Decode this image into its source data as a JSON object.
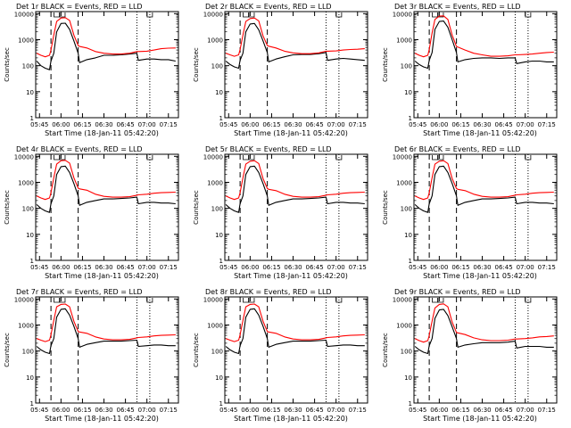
{
  "figure": {
    "ylabel": "Counts/sec",
    "xlabel": "Start Time (18-Jan-11 05:42:20)"
  },
  "axes": {
    "y_scale": "log",
    "ylim": [
      1,
      12000
    ],
    "y_tick_labels": [
      "1",
      "10",
      "100",
      "1000",
      "10000"
    ],
    "x_tick_labels": [
      "05:45",
      "06:00",
      "06:15",
      "06:30",
      "06:45",
      "07:00",
      "07:15"
    ],
    "xlim": [
      "05:42:20",
      "07:22:00"
    ]
  },
  "markers": {
    "dashed_lines": [
      "05:53",
      "06:12"
    ],
    "dotted_lines": [
      "06:53",
      "07:02"
    ],
    "top_glyphs": [
      "05:57",
      "06:01",
      "07:02"
    ]
  },
  "colors": {
    "events": "#000000",
    "lld": "#ff0000"
  },
  "chart_data": [
    {
      "type": "line",
      "title": "Det 1r BLACK = Events, RED = LLD",
      "xlabel": "Start Time (18-Jan-11 05:42:20)",
      "ylabel": "Counts/sec",
      "x": [
        "05:43",
        "05:46",
        "05:49",
        "05:52",
        "05:53",
        "05:55",
        "05:57",
        "06:00",
        "06:03",
        "06:06",
        "06:09",
        "06:12",
        "06:13",
        "06:18",
        "06:24",
        "06:30",
        "06:36",
        "06:42",
        "06:48",
        "06:53",
        "06:54",
        "07:00",
        "07:05",
        "07:10",
        "07:15",
        "07:20"
      ],
      "series": [
        {
          "name": "BLACK = Events",
          "values": [
            150,
            100,
            80,
            70,
            150,
            300,
            2000,
            4200,
            4300,
            2500,
            900,
            300,
            130,
            170,
            200,
            250,
            250,
            260,
            280,
            300,
            160,
            180,
            180,
            170,
            170,
            150
          ]
        },
        {
          "name": "RED = LLD",
          "values": [
            300,
            250,
            220,
            250,
            400,
            1500,
            5000,
            6800,
            7000,
            5500,
            1500,
            600,
            550,
            480,
            350,
            300,
            280,
            280,
            300,
            350,
            350,
            360,
            400,
            450,
            470,
            480
          ]
        }
      ]
    },
    {
      "type": "line",
      "title": "Det 2r BLACK = Events, RED = LLD",
      "xlabel": "Start Time (18-Jan-11 05:42:20)",
      "ylabel": "Counts/sec",
      "x": [
        "05:43",
        "05:46",
        "05:49",
        "05:52",
        "05:53",
        "05:55",
        "05:57",
        "06:00",
        "06:03",
        "06:06",
        "06:09",
        "06:12",
        "06:13",
        "06:18",
        "06:24",
        "06:30",
        "06:36",
        "06:42",
        "06:48",
        "06:53",
        "06:54",
        "07:00",
        "07:05",
        "07:10",
        "07:15",
        "07:20"
      ],
      "series": [
        {
          "name": "BLACK = Events",
          "values": [
            150,
            110,
            90,
            80,
            160,
            300,
            2000,
            4000,
            4200,
            2400,
            900,
            320,
            140,
            180,
            220,
            260,
            270,
            270,
            290,
            320,
            160,
            180,
            190,
            180,
            170,
            160
          ]
        },
        {
          "name": "RED = LLD",
          "values": [
            300,
            260,
            230,
            260,
            420,
            1500,
            5000,
            6500,
            6800,
            5300,
            1400,
            600,
            560,
            480,
            360,
            310,
            290,
            290,
            310,
            360,
            360,
            370,
            400,
            420,
            430,
            450
          ]
        }
      ]
    },
    {
      "type": "line",
      "title": "Det 3r BLACK = Events, RED = LLD",
      "xlabel": "Start Time (18-Jan-11 05:42:20)",
      "ylabel": "Counts/sec",
      "x": [
        "05:43",
        "05:46",
        "05:49",
        "05:52",
        "05:53",
        "05:55",
        "05:57",
        "06:00",
        "06:03",
        "06:06",
        "06:09",
        "06:12",
        "06:13",
        "06:18",
        "06:24",
        "06:30",
        "06:36",
        "06:42",
        "06:48",
        "06:53",
        "06:54",
        "07:00",
        "07:05",
        "07:10",
        "07:15",
        "07:20"
      ],
      "series": [
        {
          "name": "BLACK = Events",
          "values": [
            150,
            110,
            90,
            80,
            160,
            320,
            2500,
            5000,
            5200,
            3000,
            1000,
            320,
            140,
            170,
            190,
            200,
            200,
            190,
            200,
            200,
            120,
            140,
            150,
            150,
            140,
            140
          ]
        },
        {
          "name": "RED = LLD",
          "values": [
            300,
            250,
            220,
            250,
            420,
            1800,
            6000,
            8000,
            8200,
            6000,
            1500,
            550,
            520,
            400,
            300,
            260,
            230,
            230,
            240,
            260,
            260,
            270,
            280,
            300,
            320,
            330
          ]
        }
      ]
    },
    {
      "type": "line",
      "title": "Det 4r BLACK = Events, RED = LLD",
      "xlabel": "Start Time (18-Jan-11 05:42:20)",
      "ylabel": "Counts/sec",
      "x": [
        "05:43",
        "05:46",
        "05:49",
        "05:52",
        "05:53",
        "05:55",
        "05:57",
        "06:00",
        "06:03",
        "06:06",
        "06:09",
        "06:12",
        "06:13",
        "06:18",
        "06:24",
        "06:30",
        "06:36",
        "06:42",
        "06:48",
        "06:53",
        "06:54",
        "07:00",
        "07:05",
        "07:10",
        "07:15",
        "07:20"
      ],
      "series": [
        {
          "name": "BLACK = Events",
          "values": [
            140,
            100,
            80,
            70,
            150,
            300,
            2000,
            4000,
            4200,
            2400,
            900,
            300,
            130,
            170,
            200,
            230,
            230,
            240,
            250,
            270,
            150,
            170,
            170,
            160,
            160,
            150
          ]
        },
        {
          "name": "RED = LLD",
          "values": [
            300,
            250,
            220,
            250,
            400,
            1500,
            5000,
            6800,
            7000,
            5500,
            1500,
            600,
            560,
            500,
            350,
            290,
            270,
            270,
            280,
            320,
            330,
            350,
            380,
            400,
            410,
            420
          ]
        }
      ]
    },
    {
      "type": "line",
      "title": "Det 5r BLACK = Events, RED = LLD",
      "xlabel": "Start Time (18-Jan-11 05:42:20)",
      "ylabel": "Counts/sec",
      "x": [
        "05:43",
        "05:46",
        "05:49",
        "05:52",
        "05:53",
        "05:55",
        "05:57",
        "06:00",
        "06:03",
        "06:06",
        "06:09",
        "06:12",
        "06:13",
        "06:18",
        "06:24",
        "06:30",
        "06:36",
        "06:42",
        "06:48",
        "06:53",
        "06:54",
        "07:00",
        "07:05",
        "07:10",
        "07:15",
        "07:20"
      ],
      "series": [
        {
          "name": "BLACK = Events",
          "values": [
            140,
            100,
            80,
            70,
            150,
            300,
            2000,
            4000,
            4200,
            2400,
            900,
            300,
            130,
            170,
            200,
            230,
            230,
            240,
            250,
            270,
            150,
            170,
            170,
            160,
            160,
            150
          ]
        },
        {
          "name": "RED = LLD",
          "values": [
            300,
            250,
            220,
            250,
            400,
            1500,
            5000,
            6500,
            6800,
            5300,
            1400,
            580,
            540,
            480,
            350,
            290,
            270,
            270,
            280,
            320,
            330,
            350,
            380,
            400,
            410,
            420
          ]
        }
      ]
    },
    {
      "type": "line",
      "title": "Det 6r BLACK = Events, RED = LLD",
      "xlabel": "Start Time (18-Jan-11 05:42:20)",
      "ylabel": "Counts/sec",
      "x": [
        "05:43",
        "05:46",
        "05:49",
        "05:52",
        "05:53",
        "05:55",
        "05:57",
        "06:00",
        "06:03",
        "06:06",
        "06:09",
        "06:12",
        "06:13",
        "06:18",
        "06:24",
        "06:30",
        "06:36",
        "06:42",
        "06:48",
        "06:53",
        "06:54",
        "07:00",
        "07:05",
        "07:10",
        "07:15",
        "07:20"
      ],
      "series": [
        {
          "name": "BLACK = Events",
          "values": [
            140,
            100,
            80,
            70,
            150,
            300,
            2000,
            4000,
            4200,
            2400,
            900,
            300,
            130,
            170,
            200,
            230,
            230,
            240,
            250,
            270,
            150,
            170,
            170,
            160,
            160,
            150
          ]
        },
        {
          "name": "RED = LLD",
          "values": [
            300,
            250,
            220,
            250,
            400,
            1500,
            5000,
            6500,
            6800,
            5300,
            1400,
            580,
            540,
            480,
            350,
            290,
            270,
            270,
            280,
            320,
            330,
            350,
            380,
            400,
            410,
            420
          ]
        }
      ]
    },
    {
      "type": "line",
      "title": "Det 7r BLACK = Events, RED = LLD",
      "xlabel": "Start Time (18-Jan-11 05:42:20)",
      "ylabel": "Counts/sec",
      "x": [
        "05:43",
        "05:46",
        "05:49",
        "05:52",
        "05:53",
        "05:55",
        "05:57",
        "06:00",
        "06:03",
        "06:06",
        "06:09",
        "06:12",
        "06:13",
        "06:18",
        "06:24",
        "06:30",
        "06:36",
        "06:42",
        "06:48",
        "06:53",
        "06:54",
        "07:00",
        "07:05",
        "07:10",
        "07:15",
        "07:20"
      ],
      "series": [
        {
          "name": "BLACK = Events",
          "values": [
            150,
            110,
            90,
            80,
            160,
            300,
            2000,
            4000,
            4200,
            2400,
            900,
            300,
            140,
            180,
            210,
            240,
            240,
            240,
            250,
            260,
            150,
            160,
            170,
            170,
            160,
            160
          ]
        },
        {
          "name": "RED = LLD",
          "values": [
            300,
            260,
            230,
            260,
            420,
            1500,
            5000,
            6200,
            6400,
            5000,
            1400,
            560,
            540,
            480,
            350,
            290,
            270,
            270,
            280,
            320,
            330,
            350,
            380,
            400,
            410,
            420
          ]
        }
      ]
    },
    {
      "type": "line",
      "title": "Det 8r BLACK = Events, RED = LLD",
      "xlabel": "Start Time (18-Jan-11 05:42:20)",
      "ylabel": "Counts/sec",
      "x": [
        "05:43",
        "05:46",
        "05:49",
        "05:52",
        "05:53",
        "05:55",
        "05:57",
        "06:00",
        "06:03",
        "06:06",
        "06:09",
        "06:12",
        "06:13",
        "06:18",
        "06:24",
        "06:30",
        "06:36",
        "06:42",
        "06:48",
        "06:53",
        "06:54",
        "07:00",
        "07:05",
        "07:10",
        "07:15",
        "07:20"
      ],
      "series": [
        {
          "name": "BLACK = Events",
          "values": [
            150,
            110,
            90,
            80,
            160,
            300,
            2000,
            4000,
            4200,
            2400,
            900,
            300,
            140,
            180,
            210,
            240,
            240,
            240,
            250,
            260,
            150,
            160,
            170,
            170,
            160,
            160
          ]
        },
        {
          "name": "RED = LLD",
          "values": [
            300,
            260,
            230,
            260,
            420,
            1500,
            5000,
            6200,
            6400,
            5000,
            1400,
            560,
            540,
            480,
            350,
            290,
            270,
            270,
            280,
            320,
            330,
            350,
            380,
            400,
            410,
            420
          ]
        }
      ]
    },
    {
      "type": "line",
      "title": "Det 9r BLACK = Events, RED = LLD",
      "xlabel": "Start Time (18-Jan-11 05:42:20)",
      "ylabel": "Counts/sec",
      "x": [
        "05:43",
        "05:46",
        "05:49",
        "05:52",
        "05:53",
        "05:55",
        "05:57",
        "06:00",
        "06:03",
        "06:06",
        "06:09",
        "06:12",
        "06:13",
        "06:18",
        "06:24",
        "06:30",
        "06:36",
        "06:42",
        "06:48",
        "06:53",
        "06:54",
        "07:00",
        "07:05",
        "07:10",
        "07:15",
        "07:20"
      ],
      "series": [
        {
          "name": "BLACK = Events",
          "values": [
            150,
            110,
            90,
            80,
            160,
            300,
            1800,
            3800,
            4000,
            2300,
            850,
            300,
            140,
            170,
            190,
            210,
            210,
            210,
            220,
            240,
            130,
            150,
            150,
            150,
            140,
            140
          ]
        },
        {
          "name": "RED = LLD",
          "values": [
            300,
            250,
            220,
            250,
            400,
            1400,
            4500,
            6200,
            6500,
            5000,
            1300,
            520,
            500,
            430,
            320,
            270,
            250,
            250,
            260,
            290,
            290,
            300,
            320,
            350,
            360,
            380
          ]
        }
      ]
    }
  ]
}
